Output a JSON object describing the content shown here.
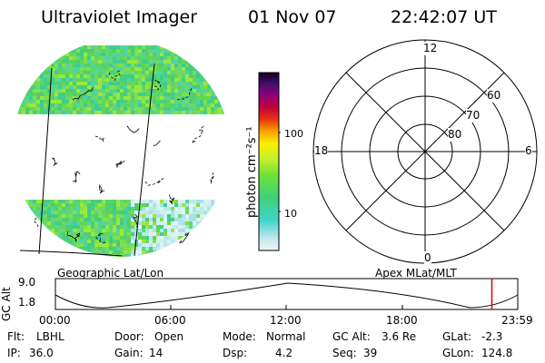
{
  "header": {
    "title": "Ultraviolet Imager",
    "date": "01 Nov 07",
    "time": "22:42:07 UT"
  },
  "colorbar": {
    "unit_label": "photon cm⁻²s⁻¹",
    "ticks": [
      "100",
      "10"
    ]
  },
  "polar_plot": {
    "mlt_labels": {
      "top": "12",
      "left": "18",
      "right": "6",
      "bottom": "0"
    },
    "lat_labels": [
      "60",
      "70",
      "80"
    ]
  },
  "orbit": {
    "y_axis_label": "GC Alt",
    "y_ticks": [
      "9.0",
      "1.8"
    ],
    "left_caption": "Geographic Lat/Lon",
    "right_caption": "Apex MLat/MLT",
    "x_ticks": [
      "00:00",
      "06:00",
      "12:00",
      "18:00",
      "23:59"
    ],
    "current_time_fraction": 0.944
  },
  "status": {
    "row1": [
      {
        "key": "Flt:",
        "value": "LBHL"
      },
      {
        "key": "Door:",
        "value": "Open"
      },
      {
        "key": "Mode:",
        "value": "Normal"
      },
      {
        "key": "GC Alt:",
        "value": "3.6 Re"
      },
      {
        "key": "GLat:",
        "value": "-2.3"
      }
    ],
    "row2": [
      {
        "key": "IP:",
        "value": "36.0"
      },
      {
        "key": "Gain:",
        "value": "14"
      },
      {
        "key": "Dsp:",
        "value": "4.2"
      },
      {
        "key": "Seq:",
        "value": "39"
      },
      {
        "key": "GLon:",
        "value": "124.8"
      }
    ]
  },
  "colors": {
    "red_marker": "#dd0000"
  }
}
